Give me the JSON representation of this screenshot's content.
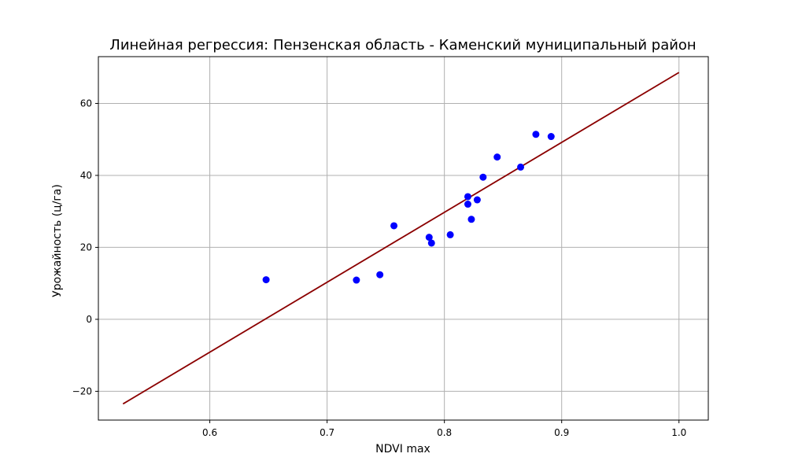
{
  "chart_data": {
    "type": "scatter",
    "title": "Линейная регрессия: Пензенская область - Каменский муниципальный район",
    "xlabel": "NDVI max",
    "ylabel": "Урожайность (ц/га)",
    "xlim": [
      0.505,
      1.025
    ],
    "ylim": [
      -28,
      73
    ],
    "xticks": [
      0.6,
      0.7,
      0.8,
      0.9,
      1.0
    ],
    "xtick_labels": [
      "0.6",
      "0.7",
      "0.8",
      "0.9",
      "1.0"
    ],
    "yticks": [
      -20,
      0,
      20,
      40,
      60
    ],
    "ytick_labels": [
      "−20",
      "0",
      "20",
      "40",
      "60"
    ],
    "grid": true,
    "series": [
      {
        "type": "scatter",
        "color": "#0000ff",
        "points": [
          [
            0.648,
            11.0
          ],
          [
            0.725,
            10.9
          ],
          [
            0.745,
            12.4
          ],
          [
            0.757,
            26.0
          ],
          [
            0.787,
            22.8
          ],
          [
            0.789,
            21.2
          ],
          [
            0.805,
            23.5
          ],
          [
            0.82,
            34.1
          ],
          [
            0.82,
            32.0
          ],
          [
            0.823,
            27.8
          ],
          [
            0.828,
            33.2
          ],
          [
            0.833,
            39.5
          ],
          [
            0.845,
            45.1
          ],
          [
            0.865,
            42.3
          ],
          [
            0.878,
            51.4
          ],
          [
            0.891,
            50.8
          ]
        ]
      },
      {
        "type": "line",
        "color": "#8b0000",
        "points": [
          [
            0.526,
            -23.5
          ],
          [
            1.0,
            68.6
          ]
        ]
      }
    ]
  }
}
